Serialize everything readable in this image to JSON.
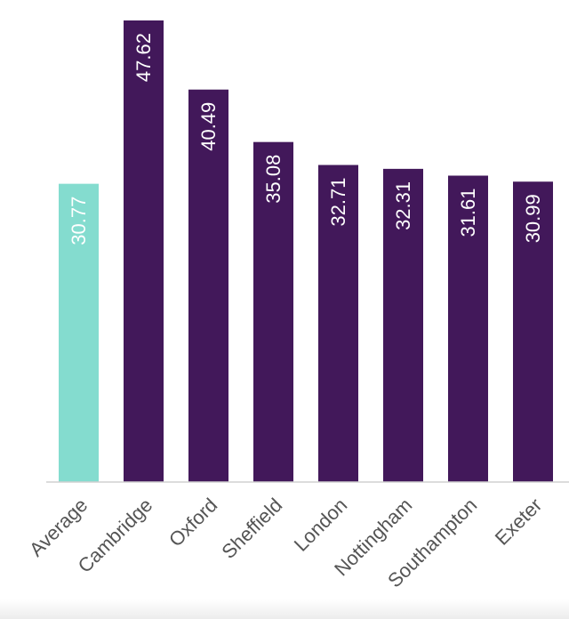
{
  "chart_data": {
    "type": "bar",
    "categories": [
      "Average",
      "Cambridge",
      "Oxford",
      "Sheffield",
      "London",
      "Nottingham",
      "Southampton",
      "Exeter"
    ],
    "values": [
      30.77,
      47.62,
      40.49,
      35.08,
      32.71,
      32.31,
      31.61,
      30.99
    ],
    "value_labels": [
      "30.77",
      "47.62",
      "40.49",
      "35.08",
      "32.71",
      "32.31",
      "31.61",
      "30.99"
    ],
    "colors": [
      "#84dccf",
      "#42185a",
      "#42185a",
      "#42185a",
      "#42185a",
      "#42185a",
      "#42185a",
      "#42185a"
    ],
    "ylim": [
      0,
      47.62
    ],
    "grid": false,
    "legend": "none",
    "title": "",
    "xlabel": "",
    "ylabel": ""
  }
}
